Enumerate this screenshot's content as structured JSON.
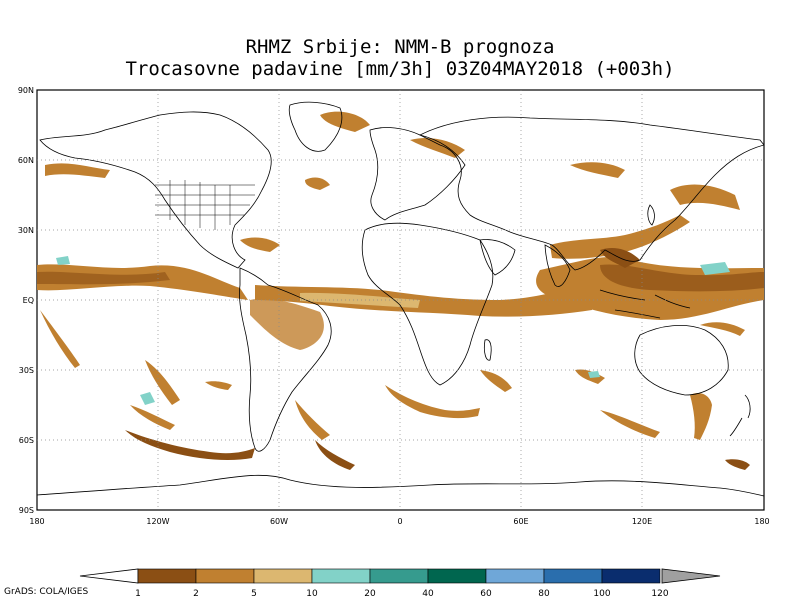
{
  "title": {
    "line1": "RHMZ Srbije: NMM-B prognoza",
    "line2": "Trocasovne padavine [mm/3h] 03Z04MAY2018 (+003h)"
  },
  "map": {
    "lat_labels": [
      "90N",
      "60N",
      "30N",
      "EQ",
      "30S",
      "60S",
      "90S"
    ],
    "lon_labels": [
      "180",
      "120W",
      "60W",
      "0",
      "60E",
      "120E",
      "180"
    ],
    "grid": "dotted"
  },
  "legend": {
    "values": [
      "1",
      "2",
      "5",
      "10",
      "20",
      "40",
      "60",
      "80",
      "100",
      "120"
    ],
    "colors": [
      "#8b4f14",
      "#c08030",
      "#dcb770",
      "#82d2c8",
      "#369b8e",
      "#00664f",
      "#6fa7d8",
      "#2a6ead",
      "#0a2d6e"
    ],
    "under_color": "#ffffff",
    "over_color": "#a0a0a0"
  },
  "credit": "GrADS: COLA/IGES"
}
